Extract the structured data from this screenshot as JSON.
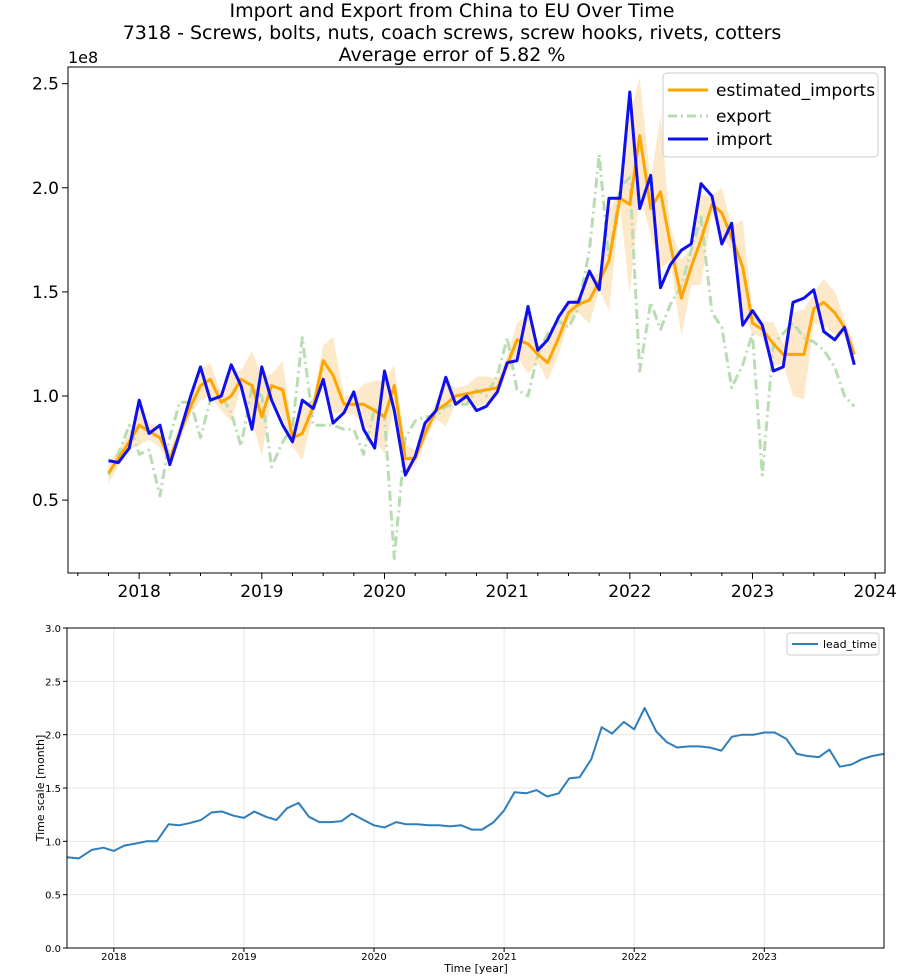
{
  "chart_data": [
    {
      "type": "line",
      "title": "Import and Export from China to EU Over Time",
      "subtitle": "7318 - Screws, bolts, nuts, coach screws, screw hooks, rivets, cotters",
      "subtitle2": "Average error of 5.82 %",
      "scale_label": "1e8",
      "xlabel": "",
      "ylabel": "",
      "xlim": [
        2017.42,
        2024.08
      ],
      "ylim": [
        0.15,
        2.58
      ],
      "x_ticks": [
        2018,
        2019,
        2020,
        2021,
        2022,
        2023,
        2024
      ],
      "x_tick_labels": [
        "2018",
        "2019",
        "2020",
        "2021",
        "2022",
        "2023",
        "2024"
      ],
      "y_ticks": [
        0.5,
        1.0,
        1.5,
        2.0,
        2.5
      ],
      "y_tick_labels": [
        "0.5",
        "1.0",
        "1.5",
        "2.0",
        "2.5"
      ],
      "grid": false,
      "legend_position": "top-right",
      "colors": {
        "estimated_imports": "#ffa500",
        "export": "#b9dcb3",
        "import": "#1010ee",
        "band": "#fde3bd"
      },
      "series": [
        {
          "name": "estimated_imports",
          "x": [
            2017.75,
            2017.83,
            2017.92,
            2018.0,
            2018.08,
            2018.17,
            2018.25,
            2018.33,
            2018.42,
            2018.5,
            2018.58,
            2018.67,
            2018.75,
            2018.83,
            2018.92,
            2019.0,
            2019.08,
            2019.17,
            2019.25,
            2019.33,
            2019.42,
            2019.5,
            2019.58,
            2019.67,
            2019.75,
            2019.83,
            2019.92,
            2020.0,
            2020.08,
            2020.17,
            2020.25,
            2020.33,
            2020.42,
            2020.5,
            2020.58,
            2020.67,
            2020.75,
            2020.83,
            2020.92,
            2021.0,
            2021.08,
            2021.17,
            2021.25,
            2021.33,
            2021.42,
            2021.5,
            2021.58,
            2021.67,
            2021.75,
            2021.83,
            2021.92,
            2022.0,
            2022.08,
            2022.17,
            2022.25,
            2022.33,
            2022.42,
            2022.5,
            2022.58,
            2022.67,
            2022.75,
            2022.83,
            2022.92,
            2023.0,
            2023.08,
            2023.17,
            2023.25,
            2023.33,
            2023.42,
            2023.5,
            2023.58,
            2023.67,
            2023.75,
            2023.83
          ],
          "values": [
            0.63,
            0.7,
            0.78,
            0.86,
            0.83,
            0.8,
            0.7,
            0.82,
            0.95,
            1.05,
            1.08,
            0.97,
            1.0,
            1.08,
            1.05,
            0.9,
            1.05,
            1.03,
            0.8,
            0.82,
            0.95,
            1.17,
            1.1,
            0.96,
            0.96,
            0.96,
            0.93,
            0.9,
            1.05,
            0.7,
            0.7,
            0.82,
            0.93,
            0.96,
            1.0,
            1.01,
            1.02,
            1.03,
            1.04,
            1.15,
            1.27,
            1.25,
            1.2,
            1.16,
            1.28,
            1.4,
            1.44,
            1.46,
            1.55,
            1.65,
            1.95,
            1.92,
            2.25,
            1.9,
            1.98,
            1.73,
            1.47,
            1.62,
            1.75,
            1.92,
            1.88,
            1.76,
            1.62,
            1.35,
            1.32,
            1.25,
            1.2,
            1.2,
            1.2,
            1.42,
            1.45,
            1.4,
            1.33,
            1.2
          ]
        },
        {
          "name": "export",
          "x": [
            2017.75,
            2017.83,
            2017.92,
            2018.0,
            2018.08,
            2018.17,
            2018.25,
            2018.33,
            2018.42,
            2018.5,
            2018.58,
            2018.67,
            2018.75,
            2018.83,
            2018.92,
            2019.0,
            2019.08,
            2019.17,
            2019.25,
            2019.33,
            2019.42,
            2019.5,
            2019.58,
            2019.67,
            2019.75,
            2019.83,
            2019.92,
            2020.0,
            2020.08,
            2020.17,
            2020.25,
            2020.33,
            2020.42,
            2020.5,
            2020.58,
            2020.67,
            2020.75,
            2020.83,
            2020.92,
            2021.0,
            2021.08,
            2021.17,
            2021.25,
            2021.33,
            2021.42,
            2021.5,
            2021.58,
            2021.67,
            2021.75,
            2021.83,
            2021.92,
            2022.0,
            2022.08,
            2022.17,
            2022.25,
            2022.33,
            2022.42,
            2022.5,
            2022.58,
            2022.67,
            2022.75,
            2022.83,
            2022.92,
            2023.0,
            2023.08,
            2023.17,
            2023.25,
            2023.33,
            2023.42,
            2023.5,
            2023.58,
            2023.67,
            2023.75,
            2023.83
          ],
          "values": [
            0.62,
            0.72,
            0.86,
            0.72,
            0.74,
            0.52,
            0.8,
            0.97,
            0.97,
            0.8,
            0.98,
            1.0,
            0.92,
            0.76,
            1.04,
            1.0,
            0.66,
            0.78,
            0.85,
            1.28,
            0.86,
            0.86,
            0.86,
            0.84,
            0.84,
            0.72,
            0.94,
            0.9,
            0.22,
            0.8,
            0.88,
            0.9,
            0.9,
            0.95,
            0.96,
            0.96,
            1.03,
            1.0,
            1.1,
            1.28,
            1.03,
            1.0,
            1.2,
            1.3,
            1.36,
            1.33,
            1.42,
            1.7,
            2.16,
            1.65,
            2.0,
            2.05,
            1.12,
            1.45,
            1.32,
            1.44,
            1.53,
            1.7,
            1.86,
            1.4,
            1.33,
            1.04,
            1.15,
            1.3,
            0.62,
            1.25,
            1.3,
            1.35,
            1.28,
            1.26,
            1.22,
            1.14,
            1.0,
            0.95
          ]
        },
        {
          "name": "import",
          "x": [
            2017.75,
            2017.83,
            2017.92,
            2018.0,
            2018.08,
            2018.17,
            2018.25,
            2018.33,
            2018.42,
            2018.5,
            2018.58,
            2018.67,
            2018.75,
            2018.83,
            2018.92,
            2019.0,
            2019.08,
            2019.17,
            2019.25,
            2019.33,
            2019.42,
            2019.5,
            2019.58,
            2019.67,
            2019.75,
            2019.83,
            2019.92,
            2020.0,
            2020.08,
            2020.17,
            2020.25,
            2020.33,
            2020.42,
            2020.5,
            2020.58,
            2020.67,
            2020.75,
            2020.83,
            2020.92,
            2021.0,
            2021.08,
            2021.17,
            2021.25,
            2021.33,
            2021.42,
            2021.5,
            2021.58,
            2021.67,
            2021.75,
            2021.83,
            2021.92,
            2022.0,
            2022.08,
            2022.17,
            2022.25,
            2022.33,
            2022.42,
            2022.5,
            2022.58,
            2022.67,
            2022.75,
            2022.83,
            2022.92,
            2023.0,
            2023.08,
            2023.17,
            2023.25,
            2023.33,
            2023.42,
            2023.5,
            2023.58,
            2023.67,
            2023.75,
            2023.83
          ],
          "values": [
            0.69,
            0.68,
            0.75,
            0.98,
            0.82,
            0.86,
            0.67,
            0.82,
            1.0,
            1.14,
            0.98,
            1.0,
            1.15,
            1.05,
            0.84,
            1.14,
            0.98,
            0.86,
            0.78,
            0.98,
            0.94,
            1.08,
            0.87,
            0.92,
            1.02,
            0.84,
            0.75,
            1.12,
            0.93,
            0.62,
            0.71,
            0.87,
            0.93,
            1.09,
            0.96,
            1.0,
            0.93,
            0.95,
            1.02,
            1.16,
            1.17,
            1.43,
            1.22,
            1.27,
            1.38,
            1.45,
            1.45,
            1.6,
            1.51,
            1.95,
            1.95,
            2.46,
            1.9,
            2.06,
            1.52,
            1.63,
            1.7,
            1.73,
            2.02,
            1.96,
            1.73,
            1.83,
            1.34,
            1.41,
            1.34,
            1.12,
            1.14,
            1.45,
            1.47,
            1.51,
            1.31,
            1.27,
            1.33,
            1.15
          ]
        }
      ]
    },
    {
      "type": "line",
      "title": "",
      "xlabel": "Time [year]",
      "ylabel": "Time scale [month]",
      "xlim": [
        2017.64,
        2023.92
      ],
      "ylim": [
        0.0,
        3.0
      ],
      "x_ticks": [
        2018,
        2019,
        2020,
        2021,
        2022,
        2023
      ],
      "x_tick_labels": [
        "2018",
        "2019",
        "2020",
        "2021",
        "2022",
        "2023"
      ],
      "y_ticks": [
        0.0,
        0.5,
        1.0,
        1.5,
        2.0,
        2.5,
        3.0
      ],
      "y_tick_labels": [
        "0.0",
        "0.5",
        "1.0",
        "1.5",
        "2.0",
        "2.5",
        "3.0"
      ],
      "grid": true,
      "legend_position": "top-right",
      "colors": {
        "lead_time": "#2f7ebc"
      },
      "series": [
        {
          "name": "lead_time",
          "x": [
            2017.64,
            2017.73,
            2017.83,
            2017.92,
            2018.0,
            2018.08,
            2018.17,
            2018.25,
            2018.33,
            2018.42,
            2018.5,
            2018.58,
            2018.67,
            2018.75,
            2018.83,
            2018.92,
            2019.0,
            2019.08,
            2019.17,
            2019.25,
            2019.33,
            2019.42,
            2019.5,
            2019.58,
            2019.67,
            2019.75,
            2019.83,
            2019.92,
            2020.0,
            2020.08,
            2020.17,
            2020.25,
            2020.33,
            2020.42,
            2020.5,
            2020.58,
            2020.67,
            2020.75,
            2020.83,
            2020.92,
            2021.0,
            2021.08,
            2021.17,
            2021.25,
            2021.33,
            2021.42,
            2021.5,
            2021.58,
            2021.67,
            2021.75,
            2021.83,
            2021.92,
            2022.0,
            2022.08,
            2022.17,
            2022.25,
            2022.33,
            2022.42,
            2022.5,
            2022.58,
            2022.67,
            2022.75,
            2022.83,
            2022.92,
            2023.0,
            2023.08,
            2023.17,
            2023.25,
            2023.33,
            2023.42,
            2023.5,
            2023.58,
            2023.67,
            2023.75,
            2023.83,
            2023.92
          ],
          "values": [
            0.85,
            0.84,
            0.92,
            0.94,
            0.91,
            0.96,
            0.98,
            1.0,
            1.0,
            1.16,
            1.15,
            1.17,
            1.2,
            1.27,
            1.28,
            1.24,
            1.22,
            1.28,
            1.23,
            1.2,
            1.31,
            1.36,
            1.23,
            1.18,
            1.18,
            1.19,
            1.26,
            1.2,
            1.15,
            1.13,
            1.18,
            1.16,
            1.16,
            1.15,
            1.15,
            1.14,
            1.15,
            1.11,
            1.11,
            1.18,
            1.29,
            1.46,
            1.45,
            1.48,
            1.42,
            1.45,
            1.59,
            1.6,
            1.77,
            2.07,
            2.01,
            2.12,
            2.05,
            2.25,
            2.03,
            1.93,
            1.88,
            1.89,
            1.89,
            1.88,
            1.85,
            1.98,
            2.0,
            2.0,
            2.02,
            2.02,
            1.96,
            1.82,
            1.8,
            1.79,
            1.86,
            1.7,
            1.72,
            1.77,
            1.8,
            1.82
          ]
        }
      ]
    }
  ]
}
